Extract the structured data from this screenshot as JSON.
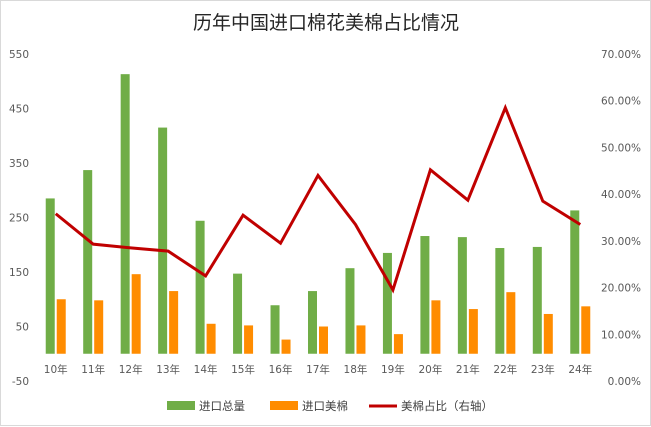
{
  "chart_data": {
    "type": "bar",
    "title": "历年中国进口棉花美棉占比情况",
    "categories": [
      "10年",
      "11年",
      "12年",
      "13年",
      "14年",
      "15年",
      "16年",
      "17年",
      "18年",
      "19年",
      "20年",
      "21年",
      "22年",
      "23年",
      "24年"
    ],
    "series": [
      {
        "name": "进口总量",
        "type": "bar",
        "axis": "left",
        "color": "#70ad47",
        "values": [
          285,
          337,
          513,
          415,
          244,
          147,
          89,
          115,
          157,
          185,
          216,
          214,
          194,
          196,
          263
        ]
      },
      {
        "name": "进口美棉",
        "type": "bar",
        "axis": "left",
        "color": "#ff8c00",
        "values": [
          100,
          98,
          146,
          115,
          55,
          52,
          26,
          50,
          52,
          36,
          98,
          82,
          113,
          73,
          87
        ]
      },
      {
        "name": "美棉占比（右轴）",
        "type": "line",
        "axis": "right",
        "color": "#c00000",
        "values": [
          0.358,
          0.293,
          0.285,
          0.278,
          0.225,
          0.355,
          0.295,
          0.44,
          0.335,
          0.195,
          0.452,
          0.387,
          0.585,
          0.385,
          0.335
        ]
      }
    ],
    "left_axis": {
      "min": -50,
      "max": 550,
      "ticks": [
        "-50",
        "50",
        "150",
        "250",
        "350",
        "450",
        "550"
      ]
    },
    "right_axis": {
      "min": 0,
      "max": 0.7,
      "ticks": [
        "0.00%",
        "10.00%",
        "20.00%",
        "30.00%",
        "40.00%",
        "50.00%",
        "60.00%",
        "70.00%"
      ]
    },
    "grid": false,
    "legend_position": "bottom"
  }
}
